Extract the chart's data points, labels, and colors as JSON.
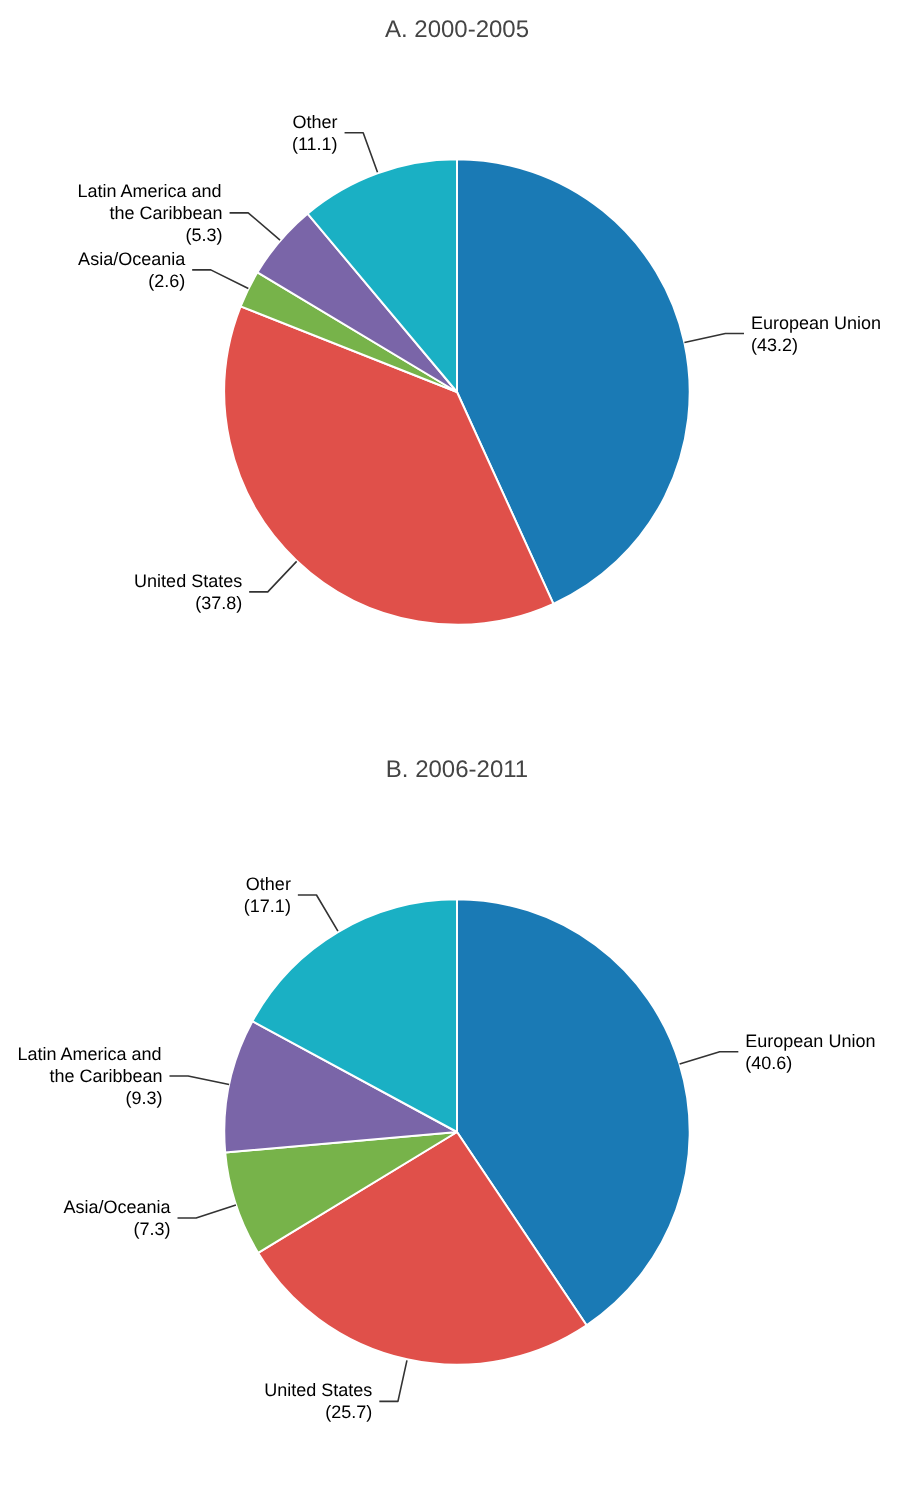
{
  "chart_data": [
    {
      "type": "pie",
      "title": "A. 2000-2005",
      "categories": [
        "European Union",
        "United States",
        "Asia/Oceania",
        "Latin America and the Caribbean",
        "Other"
      ],
      "values": [
        43.2,
        37.8,
        2.6,
        5.3,
        11.1
      ],
      "value_labels": [
        "(43.2)",
        "(37.8)",
        "(2.6)",
        "(5.3)",
        "(11.1)"
      ],
      "colors": [
        "#1a7ab5",
        "#e0504a",
        "#77b34a",
        "#7a65a8",
        "#1ab0c4"
      ]
    },
    {
      "type": "pie",
      "title": "B. 2006-2011",
      "categories": [
        "European Union",
        "United States",
        "Asia/Oceania",
        "Latin America and the Caribbean",
        "Other"
      ],
      "values": [
        40.6,
        25.7,
        7.3,
        9.3,
        17.1
      ],
      "value_labels": [
        "(40.6)",
        "(25.7)",
        "(7.3)",
        "(9.3)",
        "(17.1)"
      ],
      "colors": [
        "#1a7ab5",
        "#e0504a",
        "#77b34a",
        "#7a65a8",
        "#1ab0c4"
      ]
    }
  ]
}
